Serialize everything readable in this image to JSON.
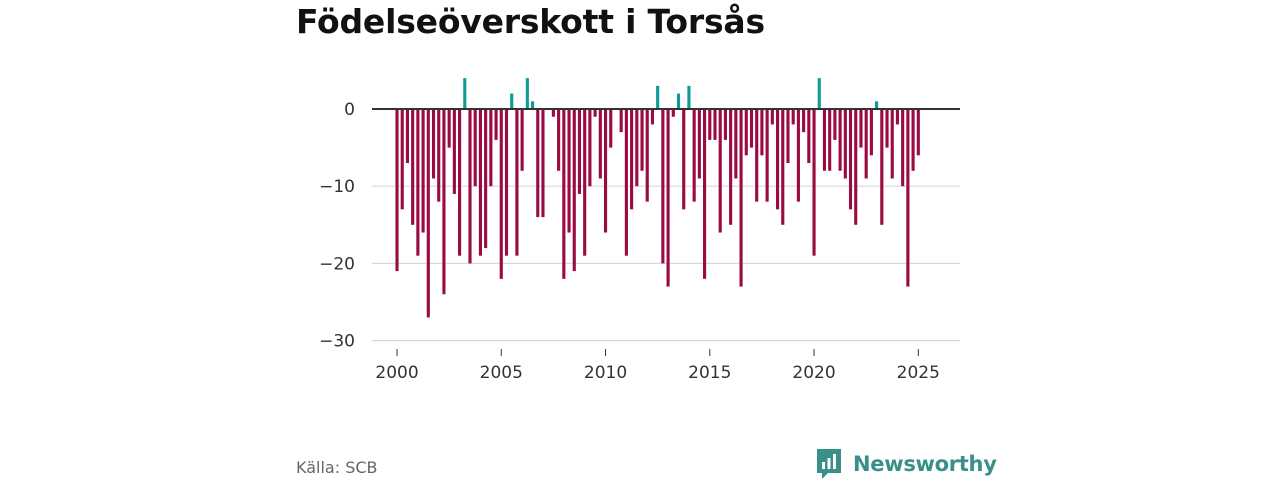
{
  "title": "Födelseöverskott i Torsås",
  "source": "Källa: SCB",
  "brand": {
    "name": "Newsworthy",
    "icon": "bar-chart-logo-icon"
  },
  "colors": {
    "negative": "#9b0b43",
    "positive": "#0f9b95",
    "baseline": "#333333",
    "grid": "#d8d8d8",
    "tick_text": "#333333",
    "brand": "#3a8f8b"
  },
  "chart_data": {
    "type": "bar",
    "title": "Födelseöverskott i Torsås",
    "xlabel": "",
    "ylabel": "",
    "frequency": "monthly",
    "x_start": 2000.0,
    "x_step": 0.25,
    "xlim": [
      1998.8,
      2027.0
    ],
    "ylim": [
      -30,
      5
    ],
    "xticks": [
      2000,
      2005,
      2010,
      2015,
      2020,
      2025
    ],
    "xtick_labels": [
      "2000",
      "2005",
      "2010",
      "2015",
      "2020",
      "2025"
    ],
    "yticks": [
      0,
      -10,
      -20,
      -30
    ],
    "ytick_labels": [
      "0",
      "−10",
      "−20",
      "−30"
    ],
    "grid": true,
    "values": [
      -21,
      -13,
      -7,
      -15,
      -19,
      -16,
      -27,
      -9,
      -12,
      -24,
      -5,
      -11,
      -19,
      4,
      -20,
      -10,
      -19,
      -18,
      -10,
      -4,
      -22,
      -19,
      2,
      -19,
      -8,
      4,
      1,
      -14,
      -14,
      0,
      -1,
      -8,
      -22,
      -16,
      -21,
      -11,
      -19,
      -10,
      -1,
      -9,
      -16,
      -5,
      0,
      -3,
      -19,
      -13,
      -10,
      -8,
      -12,
      -2,
      3,
      -20,
      -23,
      -1,
      2,
      -13,
      3,
      -12,
      -9,
      -22,
      -4,
      -4,
      -16,
      -4,
      -15,
      -9,
      -23,
      -6,
      -5,
      -12,
      -6,
      -12,
      -2,
      -13,
      -15,
      -7,
      -2,
      -12,
      -3,
      -7,
      -19,
      4,
      -8,
      -8,
      -4,
      -8,
      -9,
      -13,
      -15,
      -5,
      -9,
      -6,
      1,
      -15,
      -5,
      -9,
      -2,
      -10,
      -23,
      -8,
      -6
    ]
  }
}
